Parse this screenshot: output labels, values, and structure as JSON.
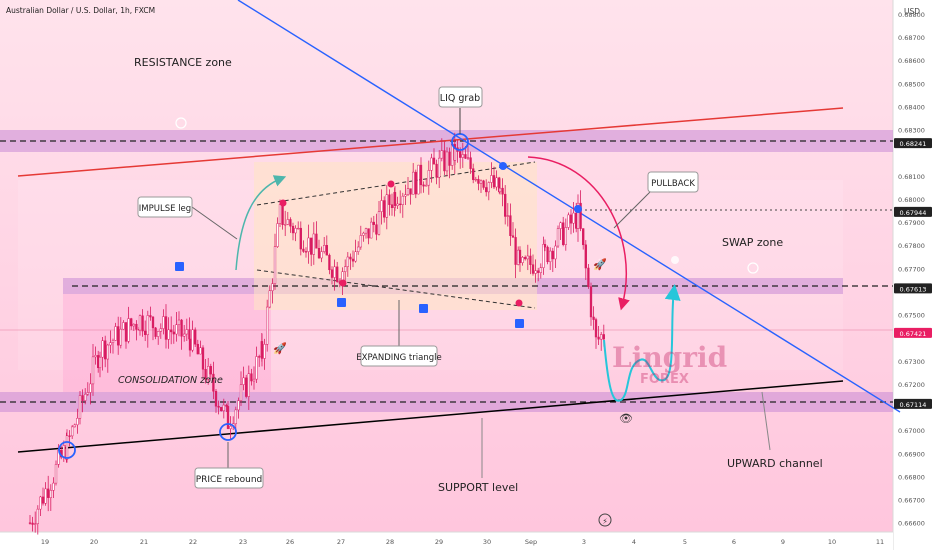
{
  "header": {
    "symbol_title": "Australian Dollar / U.S. Dollar, 1h, FXCM"
  },
  "currency_label": "USD",
  "colors": {
    "background": "#ffd6e6",
    "candle": "#d81b60",
    "resistance_line": "#e53935",
    "trendline": "#2962ff",
    "channel_support": "#000000",
    "zone_band": "#c98ad6",
    "path_projection": "#26c6da",
    "arrow_green": "#4db6ac",
    "arrow_pink": "#e91e63"
  },
  "chart_data": {
    "type": "candlestick",
    "xlabel": "",
    "ylabel": "",
    "ylim": [
      0.6656,
      0.6886
    ],
    "x_tick_labels": [
      "19",
      "20",
      "21",
      "22",
      "23",
      "26",
      "27",
      "28",
      "29",
      "30",
      "Sep",
      "3",
      "4",
      "5",
      "6",
      "9",
      "10",
      "11"
    ],
    "y_tick_labels": [
      "0.66600",
      "0.66700",
      "0.66800",
      "0.66900",
      "0.67000",
      "0.67200",
      "0.67300",
      "0.67500",
      "0.67700",
      "0.67800",
      "0.67900",
      "0.68000",
      "0.68100",
      "0.68300",
      "0.68400",
      "0.68500",
      "0.68600",
      "0.68700",
      "0.68800"
    ],
    "price_markers": [
      {
        "label": "0.68241",
        "style": "dashed"
      },
      {
        "label": "0.67944",
        "style": "dotted"
      },
      {
        "label": "0.67613",
        "style": "dashed"
      },
      {
        "label": "0.67421",
        "style": "current"
      },
      {
        "label": "0.67114",
        "style": "dashed"
      }
    ],
    "close_path_key_points": [
      {
        "x": "19",
        "y": 0.666
      },
      {
        "x": "19",
        "y": 0.6693
      },
      {
        "x": "20",
        "y": 0.6735
      },
      {
        "x": "21",
        "y": 0.6748
      },
      {
        "x": "22",
        "y": 0.674
      },
      {
        "x": "22",
        "y": 0.6704
      },
      {
        "x": "23",
        "y": 0.6733
      },
      {
        "x": "26",
        "y": 0.6793
      },
      {
        "x": "27",
        "y": 0.6768
      },
      {
        "x": "28",
        "y": 0.6802
      },
      {
        "x": "29",
        "y": 0.6819
      },
      {
        "x": "30",
        "y": 0.6803
      },
      {
        "x": "30",
        "y": 0.6769
      },
      {
        "x": "Sep",
        "y": 0.6776
      },
      {
        "x": "3",
        "y": 0.6793
      },
      {
        "x": "3",
        "y": 0.6738
      },
      {
        "x": "3",
        "y": 0.6742
      }
    ],
    "annotations": [
      "RESISTANCE zone",
      "LIQ grab",
      "PULLBACK",
      "IMPULSE leg",
      "SWAP zone",
      "CONSOLIDATION zone",
      "EXPANDING triangle",
      "PRICE rebound",
      "SUPPORT level",
      "UPWARD channel"
    ]
  },
  "watermark": {
    "name": "Lingrid",
    "sub": "FOREX"
  }
}
